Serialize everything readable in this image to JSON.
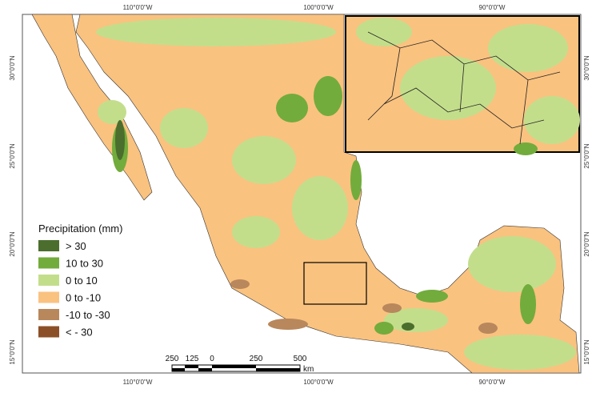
{
  "map": {
    "grid_labels": {
      "top": [
        "110°0'0\"W",
        "100°0'0\"W",
        "90°0'0\"W"
      ],
      "bottom": [
        "110°0'0\"W",
        "100°0'0\"W",
        "90°0'0\"W"
      ],
      "left": [
        "30°0'0\"N",
        "25°0'0\"N",
        "20°0'0\"N",
        "15°0'0\"N"
      ],
      "right": [
        "30°0'0\"N",
        "25°0'0\"N",
        "20°0'0\"N",
        "15°0'0\"N"
      ]
    },
    "legend": {
      "title": "Precipitation (mm)",
      "items": [
        {
          "label": "> 30",
          "color": "#4b6e2e"
        },
        {
          "label": "10 to 30",
          "color": "#72ac3c"
        },
        {
          "label": "0 to 10",
          "color": "#c3de8b"
        },
        {
          "label": "0 to -10",
          "color": "#fac27f"
        },
        {
          "label": "-10 to -30",
          "color": "#b9875c"
        },
        {
          "label": "< - 30",
          "color": "#8c5028"
        }
      ]
    },
    "scale_bar": {
      "labels": [
        "250",
        "125",
        "0",
        "250",
        "500"
      ],
      "unit": "km"
    }
  }
}
